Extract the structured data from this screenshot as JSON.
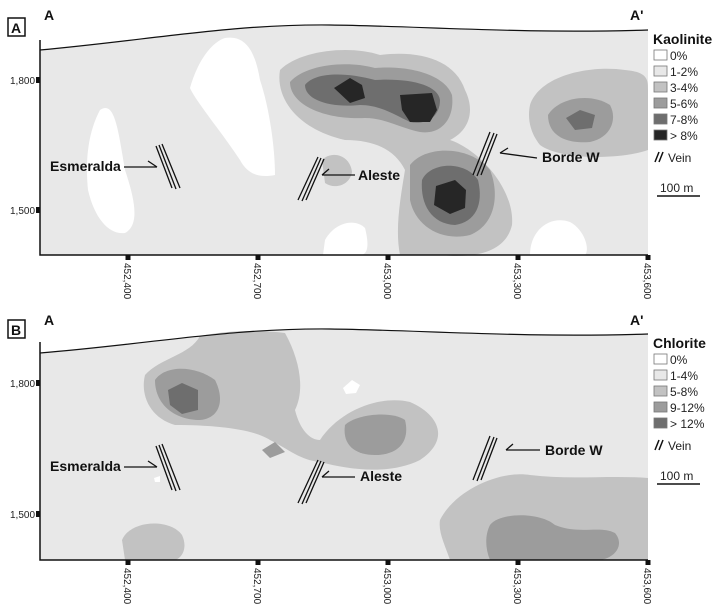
{
  "panels": [
    {
      "panel_label": "A",
      "section_start": "A",
      "section_end": "A'",
      "legend_title": "Kaolinite",
      "legend": [
        {
          "label": "0%",
          "color": "#ffffff"
        },
        {
          "label": "1-2%",
          "color": "#e8e8e8"
        },
        {
          "label": "3-4%",
          "color": "#c2c2c2"
        },
        {
          "label": "5-6%",
          "color": "#9c9c9c"
        },
        {
          "label": "7-8%",
          "color": "#6e6e6e"
        },
        {
          "label": "> 8%",
          "color": "#262626"
        }
      ],
      "vein_label": "Vein",
      "scale_label": "100 m",
      "y_ticks": [
        "1,800",
        "1,500"
      ],
      "x_ticks": [
        "452,400",
        "452,700",
        "453,000",
        "453,300",
        "453,600"
      ],
      "veins": [
        "Esmeralda",
        "Aleste",
        "Borde W"
      ]
    },
    {
      "panel_label": "B",
      "section_start": "A",
      "section_end": "A'",
      "legend_title": "Chlorite",
      "legend": [
        {
          "label": "0%",
          "color": "#ffffff"
        },
        {
          "label": "1-4%",
          "color": "#e8e8e8"
        },
        {
          "label": "5-8%",
          "color": "#c2c2c2"
        },
        {
          "label": "9-12%",
          "color": "#9c9c9c"
        },
        {
          "label": "> 12%",
          "color": "#6e6e6e"
        }
      ],
      "vein_label": "Vein",
      "scale_label": "100 m",
      "y_ticks": [
        "1,800",
        "1,500"
      ],
      "x_ticks": [
        "452,400",
        "452,700",
        "453,000",
        "453,300",
        "453,600"
      ],
      "veins": [
        "Esmeralda",
        "Aleste",
        "Borde W"
      ]
    }
  ]
}
